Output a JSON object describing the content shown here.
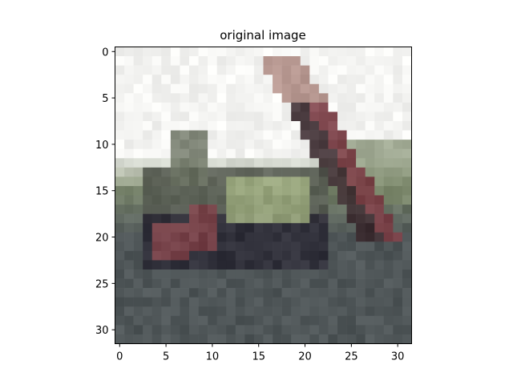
{
  "chart_data": {
    "type": "heatmap",
    "title": "original image",
    "xlabel": "",
    "ylabel": "",
    "xlim": [
      -0.5,
      31.5
    ],
    "ylim": [
      31.5,
      -0.5
    ],
    "xticks": [
      0,
      5,
      10,
      15,
      20,
      25,
      30
    ],
    "yticks": [
      0,
      5,
      10,
      15,
      20,
      25,
      30
    ],
    "xtick_labels": [
      "0",
      "5",
      "10",
      "15",
      "20",
      "25",
      "30"
    ],
    "ytick_labels": [
      "0",
      "5",
      "10",
      "15",
      "20",
      "25",
      "30"
    ],
    "grid": false,
    "image_size": [
      32,
      32
    ],
    "image_description_colors": {
      "sky": "#f4f4f2",
      "ground": "#4f5658",
      "hedge": "#7d8a6c",
      "arm_dark": "#3a2a2e",
      "arm_red": "#7a3c44",
      "arm_light": "#b08e86",
      "machine_green": "#9aa77c",
      "machine_dark": "#2c2a36"
    }
  }
}
